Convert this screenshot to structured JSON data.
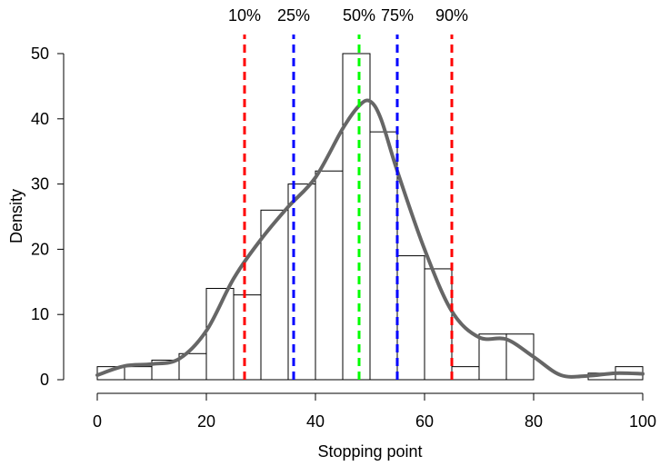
{
  "chart_data": {
    "type": "bar",
    "title": "",
    "xlabel": "Stopping point",
    "ylabel": "Density",
    "xlim": [
      0,
      100
    ],
    "ylim": [
      0,
      50
    ],
    "xticks": [
      0,
      20,
      40,
      60,
      80,
      100
    ],
    "yticks": [
      0,
      10,
      20,
      30,
      40,
      50
    ],
    "grid": false,
    "bin_width": 5,
    "bins": [
      {
        "start": 0,
        "end": 5,
        "value": 2
      },
      {
        "start": 5,
        "end": 10,
        "value": 2
      },
      {
        "start": 10,
        "end": 15,
        "value": 3
      },
      {
        "start": 15,
        "end": 20,
        "value": 4
      },
      {
        "start": 20,
        "end": 25,
        "value": 14
      },
      {
        "start": 25,
        "end": 30,
        "value": 13
      },
      {
        "start": 30,
        "end": 35,
        "value": 26
      },
      {
        "start": 35,
        "end": 40,
        "value": 30
      },
      {
        "start": 40,
        "end": 45,
        "value": 32
      },
      {
        "start": 45,
        "end": 50,
        "value": 50
      },
      {
        "start": 50,
        "end": 55,
        "value": 38
      },
      {
        "start": 55,
        "end": 60,
        "value": 19
      },
      {
        "start": 60,
        "end": 65,
        "value": 17
      },
      {
        "start": 65,
        "end": 70,
        "value": 2
      },
      {
        "start": 70,
        "end": 75,
        "value": 7
      },
      {
        "start": 75,
        "end": 80,
        "value": 7
      },
      {
        "start": 80,
        "end": 85,
        "value": 0
      },
      {
        "start": 85,
        "end": 90,
        "value": 0
      },
      {
        "start": 90,
        "end": 95,
        "value": 1
      },
      {
        "start": 95,
        "end": 100,
        "value": 2
      }
    ],
    "density_curve": {
      "color": "#666666",
      "x": [
        0,
        5,
        10,
        15,
        20,
        25,
        30,
        35,
        40,
        45,
        48,
        50,
        52,
        55,
        60,
        65,
        70,
        75,
        80,
        85,
        90,
        95,
        100
      ],
      "y": [
        0.7,
        2.1,
        2.4,
        3.2,
        7.5,
        15.5,
        21.5,
        26.5,
        31.0,
        38.5,
        42.0,
        42.7,
        40.0,
        32.0,
        20.0,
        10.5,
        6.5,
        6.2,
        3.5,
        0.7,
        0.6,
        1.0,
        0.9
      ]
    },
    "quantile_lines": [
      {
        "label": "10%",
        "x": 27,
        "color": "#ff0000"
      },
      {
        "label": "25%",
        "x": 36,
        "color": "#0000ff"
      },
      {
        "label": "50%",
        "x": 48,
        "color": "#00ff00"
      },
      {
        "label": "75%",
        "x": 55,
        "color": "#0000ff"
      },
      {
        "label": "90%",
        "x": 65,
        "color": "#ff0000"
      }
    ]
  }
}
